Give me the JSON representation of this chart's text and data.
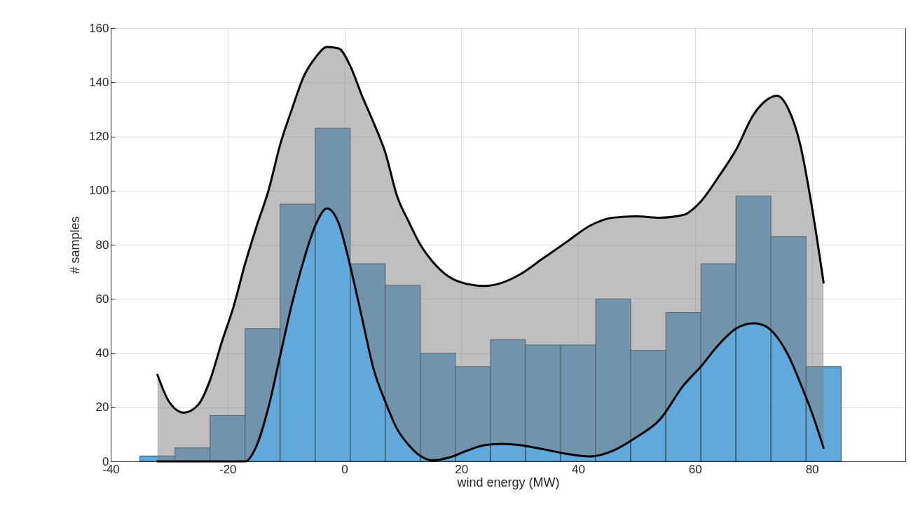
{
  "chart_data": {
    "type": "histogram",
    "xlabel": "wind energy (MW)",
    "ylabel": "# samples",
    "xlim": [
      -40,
      96
    ],
    "xticks": [
      -40,
      -20,
      0,
      20,
      40,
      60,
      80
    ],
    "ylim": [
      0,
      160
    ],
    "yticks": [
      0,
      20,
      40,
      60,
      80,
      100,
      120,
      140,
      160
    ],
    "grid": true,
    "series": [
      {
        "type": "histogram",
        "color": "#62a9db",
        "bins": [
          -35,
          -29,
          -23,
          -17,
          -11,
          -5,
          1,
          7,
          13,
          19,
          25,
          31,
          37,
          43,
          49,
          55,
          61,
          67,
          73,
          79,
          85
        ],
        "values": [
          2,
          5,
          17,
          49,
          95,
          123,
          73,
          65,
          40,
          35,
          45,
          43,
          43,
          60,
          41,
          55,
          73,
          98,
          83,
          35
        ]
      },
      {
        "type": "line",
        "color": "#000000",
        "upper": [
          32,
          22,
          18,
          21,
          30,
          44,
          57,
          73,
          87,
          100,
          117,
          130,
          142,
          149,
          153,
          152.5,
          146,
          135,
          125,
          114,
          98,
          88.5,
          80,
          74,
          68,
          65.5,
          64.8,
          66,
          69,
          75,
          81,
          87,
          90,
          90.5,
          90,
          91,
          96,
          105,
          115,
          128,
          133,
          135,
          130,
          117,
          94,
          66
        ],
        "x": [
          -32,
          -30,
          -27.5,
          -25,
          -23,
          -21,
          -19,
          -17,
          -15,
          -13,
          -11,
          -9,
          -7,
          -5,
          -3,
          -1,
          1,
          3,
          5,
          7,
          9,
          11,
          13,
          15,
          18,
          21,
          24,
          27,
          30,
          34,
          38,
          42,
          46,
          50,
          54,
          58,
          61,
          64,
          67,
          70,
          72,
          74,
          76,
          78,
          80,
          82
        ],
        "values": [
          32,
          22,
          18,
          21,
          30,
          44,
          57,
          73,
          87,
          100,
          117,
          130,
          142,
          149,
          153,
          152.5,
          146,
          135,
          125,
          114,
          98,
          88.5,
          80,
          74,
          68,
          65.5,
          64.8,
          66,
          69,
          75,
          81,
          87,
          90,
          90.5,
          90,
          91,
          96,
          105,
          115,
          128,
          133,
          135,
          130,
          117,
          94,
          66
        ],
        "lower": [
          0,
          0,
          0,
          0,
          0,
          0,
          0,
          0,
          6,
          20,
          39,
          58,
          74,
          87,
          93.4,
          88,
          72,
          53,
          34,
          22,
          12,
          6,
          2,
          0.4,
          1.5,
          4,
          6,
          6.5,
          6,
          4.5,
          2.8,
          1.8,
          4,
          9,
          15.5,
          28,
          35,
          43,
          49,
          51,
          50,
          46,
          39,
          29,
          18,
          5
        ]
      },
      {
        "type": "line",
        "color": "#000000",
        "x": [
          -32,
          -30,
          -27.5,
          -25,
          -23,
          -21,
          -19,
          -17,
          -15,
          -13,
          -11,
          -9,
          -7,
          -5,
          -3,
          -1,
          1,
          3,
          5,
          7,
          9,
          11,
          13,
          15,
          18,
          21,
          24,
          27,
          30,
          34,
          38,
          42,
          46,
          50,
          54,
          58,
          61,
          64,
          67,
          70,
          72,
          74,
          76,
          78,
          80,
          82
        ],
        "values": [
          0,
          0,
          0,
          0,
          0,
          0,
          0,
          0,
          6,
          20,
          39,
          58,
          74,
          87,
          93.4,
          88,
          72,
          53,
          34,
          22,
          12,
          6,
          2,
          0.4,
          1.5,
          4,
          6,
          6.5,
          6,
          4.5,
          2.8,
          1.8,
          4,
          9,
          15.5,
          28,
          35,
          43,
          49,
          51,
          50,
          46,
          39,
          29,
          18,
          5
        ]
      }
    ]
  }
}
